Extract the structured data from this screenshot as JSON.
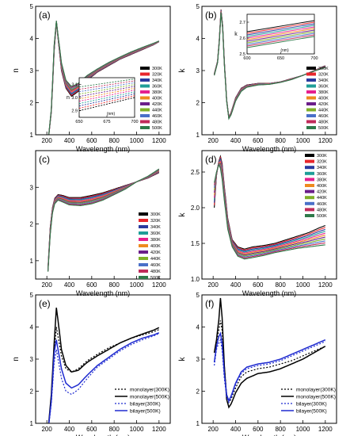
{
  "colors": [
    "#000000",
    "#e8262c",
    "#2a3a9f",
    "#1f9e98",
    "#e51f8e",
    "#ee8a1f",
    "#6b1e8a",
    "#7fb028",
    "#4a70c8",
    "#c02a5a",
    "#2f7a4a",
    "#6f8f9f"
  ],
  "temps": [
    "300K",
    "320K",
    "340K",
    "360K",
    "380K",
    "400K",
    "420K",
    "440K",
    "460K",
    "480K",
    "500K"
  ],
  "chart_data": [
    {
      "panel": "(a)",
      "type": "line",
      "xlabel": "Wavelength (nm)",
      "ylabel": "n",
      "xlim": [
        100,
        1300
      ],
      "ylim": [
        1,
        5
      ],
      "xticks": [
        "200",
        "400",
        "600",
        "800",
        "1000",
        "1200"
      ],
      "yticks": [
        "1",
        "2",
        "3",
        "4",
        "5"
      ],
      "legend": "right",
      "series_style": "temps",
      "key_x": [
        210,
        240,
        265,
        285,
        300,
        330,
        370,
        420,
        480,
        560,
        650,
        750,
        850,
        950,
        1050,
        1150,
        1200
      ],
      "series_from": [
        0.75,
        1.7,
        3.6,
        4.5,
        4.0,
        3.0,
        2.45,
        2.2,
        2.35,
        2.7,
        2.95,
        3.15,
        3.35,
        3.5,
        3.65,
        3.8,
        3.9
      ],
      "series_to": [
        0.75,
        1.8,
        3.8,
        4.55,
        4.1,
        3.25,
        2.7,
        2.5,
        2.6,
        2.85,
        3.05,
        3.25,
        3.42,
        3.58,
        3.72,
        3.85,
        3.92
      ],
      "inset": {
        "xlabel": "(nm)",
        "ylabel": "n",
        "xlim": [
          650,
          700
        ],
        "ylim": [
          2.85,
          3.15
        ],
        "xticks": [
          "650",
          "675",
          "700"
        ],
        "yticks": [
          "2.9",
          "3.0",
          "3.1"
        ],
        "from_start": 2.9,
        "from_end": 3.0,
        "to_start": 3.08,
        "to_end": 3.14
      }
    },
    {
      "panel": "(b)",
      "type": "line",
      "xlabel": "Wavelength (nm)",
      "ylabel": "k",
      "xlim": [
        100,
        1300
      ],
      "ylim": [
        1,
        5
      ],
      "xticks": [
        "200",
        "400",
        "600",
        "800",
        "1000",
        "1200"
      ],
      "yticks": [
        "1",
        "2",
        "3",
        "4",
        "5"
      ],
      "legend": "right",
      "series_style": "temps",
      "key_x": [
        210,
        225,
        240,
        255,
        270,
        285,
        300,
        320,
        340,
        360,
        400,
        450,
        500,
        600,
        700,
        800,
        900,
        1000,
        1100,
        1200
      ],
      "series_from": [
        2.9,
        3.1,
        3.3,
        4.0,
        4.9,
        4.4,
        3.3,
        2.1,
        1.55,
        1.7,
        2.15,
        2.45,
        2.55,
        2.6,
        2.6,
        2.65,
        2.75,
        2.85,
        3.0,
        3.15
      ],
      "series_to": [
        2.85,
        3.05,
        3.25,
        3.9,
        4.8,
        4.3,
        3.2,
        2.05,
        1.5,
        1.62,
        2.05,
        2.35,
        2.48,
        2.55,
        2.57,
        2.63,
        2.72,
        2.85,
        2.98,
        3.1
      ],
      "inset": {
        "xlabel": "(nm)",
        "ylabel": "k",
        "xlim": [
          600,
          700
        ],
        "ylim": [
          2.5,
          2.75
        ],
        "xticks": [
          "600",
          "650",
          "700"
        ],
        "yticks": [
          "2.5",
          "2.6",
          "2.7"
        ],
        "from_start": 2.64,
        "from_end": 2.71,
        "to_start": 2.54,
        "to_end": 2.61
      }
    },
    {
      "panel": "(c)",
      "type": "line",
      "xlabel": "Wavelength (nm)",
      "ylabel": "",
      "xlim": [
        100,
        1300
      ],
      "ylim": [
        0.5,
        4.0
      ],
      "xticks": [
        "200",
        "400",
        "600",
        "800",
        "1000",
        "1200"
      ],
      "yticks": [
        "1",
        "2",
        "3"
      ],
      "legend": "right",
      "series_style": "temps",
      "key_x": [
        210,
        230,
        250,
        270,
        300,
        340,
        400,
        500,
        600,
        700,
        800,
        900,
        1000,
        1100,
        1200
      ],
      "series_from": [
        0.8,
        1.9,
        2.45,
        2.7,
        2.8,
        2.78,
        2.72,
        2.72,
        2.78,
        2.85,
        2.95,
        3.05,
        3.15,
        3.25,
        3.4
      ],
      "series_to": [
        0.7,
        1.7,
        2.3,
        2.55,
        2.65,
        2.6,
        2.52,
        2.5,
        2.55,
        2.65,
        2.8,
        2.95,
        3.15,
        3.3,
        3.5
      ]
    },
    {
      "panel": "(d)",
      "type": "line",
      "xlabel": "Wavelength (nm)",
      "ylabel": "k",
      "xlim": [
        100,
        1300
      ],
      "ylim": [
        1.0,
        2.8
      ],
      "xticks": [
        "200",
        "400",
        "600",
        "800",
        "1000",
        "1200"
      ],
      "yticks": [
        "1.0",
        "1.5",
        "2.0",
        "2.5"
      ],
      "legend": "right",
      "series_style": "temps",
      "key_x": [
        210,
        230,
        250,
        265,
        280,
        300,
        330,
        370,
        420,
        480,
        550,
        650,
        750,
        850,
        950,
        1050,
        1150,
        1200
      ],
      "series_from": [
        2.0,
        2.45,
        2.65,
        2.72,
        2.62,
        2.3,
        1.85,
        1.55,
        1.45,
        1.42,
        1.45,
        1.47,
        1.5,
        1.55,
        1.6,
        1.65,
        1.72,
        1.75
      ],
      "series_to": [
        2.35,
        2.5,
        2.6,
        2.55,
        2.4,
        2.1,
        1.7,
        1.45,
        1.32,
        1.28,
        1.3,
        1.33,
        1.37,
        1.4,
        1.43,
        1.45,
        1.47,
        1.48
      ]
    },
    {
      "panel": "(e)",
      "type": "line",
      "xlabel": "Wavelength (nm)",
      "ylabel": "n",
      "xlim": [
        100,
        1300
      ],
      "ylim": [
        1,
        5
      ],
      "xticks": [
        "200",
        "400",
        "600",
        "800",
        "1000",
        "1200"
      ],
      "yticks": [
        "1",
        "2",
        "3",
        "4",
        "5"
      ],
      "legend": "bottom-right",
      "key_x": [
        210,
        240,
        265,
        285,
        300,
        330,
        370,
        420,
        480,
        560,
        650,
        750,
        850,
        950,
        1050,
        1150,
        1200
      ],
      "series": [
        {
          "name": "monolayer(300K)",
          "color": "#000000",
          "dash": "2,2",
          "values": [
            0.75,
            1.7,
            3.1,
            4.0,
            3.7,
            3.1,
            2.7,
            2.6,
            2.7,
            2.95,
            3.15,
            3.35,
            3.5,
            3.65,
            3.75,
            3.85,
            3.92
          ]
        },
        {
          "name": "monolayer(500K)",
          "color": "#000000",
          "dash": "",
          "values": [
            0.75,
            1.9,
            3.5,
            4.6,
            4.2,
            3.3,
            2.8,
            2.6,
            2.65,
            2.9,
            3.1,
            3.3,
            3.5,
            3.65,
            3.78,
            3.9,
            3.98
          ]
        },
        {
          "name": "bilayer(300K)",
          "color": "#1f2bd0",
          "dash": "2,2",
          "values": [
            0.75,
            1.6,
            2.9,
            3.3,
            3.0,
            2.4,
            2.0,
            1.9,
            2.05,
            2.4,
            2.75,
            3.0,
            3.25,
            3.45,
            3.6,
            3.72,
            3.8
          ]
        },
        {
          "name": "bilayer(500K)",
          "color": "#1f2bd0",
          "dash": "",
          "values": [
            0.75,
            1.7,
            3.2,
            3.6,
            3.3,
            2.7,
            2.25,
            2.1,
            2.2,
            2.5,
            2.8,
            3.05,
            3.3,
            3.5,
            3.65,
            3.75,
            3.82
          ]
        }
      ]
    },
    {
      "panel": "(f)",
      "type": "line",
      "xlabel": "Wavelength (nm)",
      "ylabel": "k",
      "xlim": [
        100,
        1300
      ],
      "ylim": [
        1,
        5
      ],
      "xticks": [
        "200",
        "400",
        "600",
        "800",
        "1000",
        "1200"
      ],
      "yticks": [
        "1",
        "2",
        "3",
        "4",
        "5"
      ],
      "legend": "bottom-right",
      "key_x": [
        210,
        230,
        250,
        265,
        280,
        300,
        320,
        340,
        360,
        400,
        450,
        500,
        600,
        700,
        800,
        900,
        1000,
        1100,
        1200
      ],
      "series": [
        {
          "name": "monolayer(300K)",
          "color": "#000000",
          "dash": "2,2",
          "values": [
            3.2,
            3.5,
            3.9,
            4.2,
            3.9,
            2.8,
            1.9,
            1.65,
            1.75,
            2.1,
            2.45,
            2.6,
            2.7,
            2.75,
            2.85,
            2.95,
            3.1,
            3.25,
            3.4
          ]
        },
        {
          "name": "monolayer(500K)",
          "color": "#000000",
          "dash": "",
          "values": [
            3.2,
            3.6,
            4.2,
            4.9,
            4.3,
            2.8,
            1.75,
            1.5,
            1.6,
            1.95,
            2.25,
            2.4,
            2.55,
            2.6,
            2.7,
            2.85,
            3.0,
            3.2,
            3.4
          ]
        },
        {
          "name": "bilayer(300K)",
          "color": "#1f2bd0",
          "dash": "2,2",
          "values": [
            2.8,
            3.3,
            3.5,
            3.6,
            3.3,
            2.4,
            1.8,
            1.65,
            1.8,
            2.2,
            2.55,
            2.7,
            2.8,
            2.85,
            2.95,
            3.1,
            3.25,
            3.4,
            3.55
          ]
        },
        {
          "name": "bilayer(500K)",
          "color": "#1f2bd0",
          "dash": "",
          "values": [
            2.9,
            3.4,
            3.7,
            3.8,
            3.5,
            2.55,
            1.9,
            1.7,
            1.85,
            2.25,
            2.6,
            2.75,
            2.85,
            2.9,
            3.0,
            3.15,
            3.3,
            3.45,
            3.6
          ]
        }
      ]
    }
  ]
}
